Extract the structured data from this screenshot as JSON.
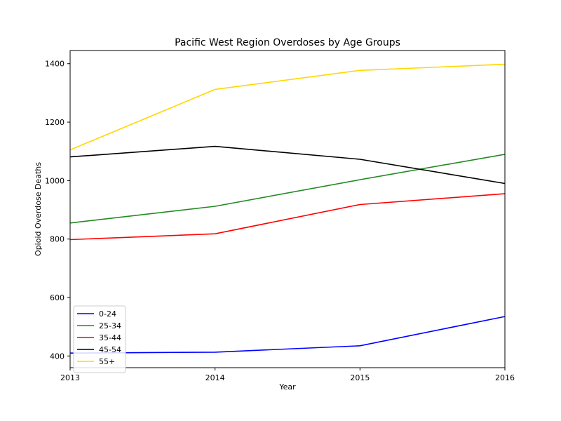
{
  "chart_data": {
    "type": "line",
    "title": "Pacific West Region Overdoses by Age Groups",
    "xlabel": "Year",
    "ylabel": "Opioid Overdose Deaths",
    "x": [
      2013,
      2014,
      2015,
      2016
    ],
    "x_tick_labels": [
      "2013",
      "2014",
      "2015",
      "2016"
    ],
    "xlim": [
      2013,
      2016
    ],
    "ylim": [
      360,
      1445
    ],
    "y_ticks": [
      400,
      600,
      800,
      1000,
      1200,
      1400
    ],
    "y_tick_labels": [
      "400",
      "600",
      "800",
      "1000",
      "1200",
      "1400"
    ],
    "grid": false,
    "legend_position": "lower-left",
    "series": [
      {
        "name": "0-24",
        "color": "#0000ff",
        "values": [
          410,
          413,
          435,
          535
        ]
      },
      {
        "name": "25-34",
        "color": "#228b22",
        "values": [
          855,
          912,
          1003,
          1090
        ]
      },
      {
        "name": "35-44",
        "color": "#ff0000",
        "values": [
          798,
          818,
          918,
          955
        ]
      },
      {
        "name": "45-54",
        "color": "#000000",
        "values": [
          1081,
          1117,
          1073,
          990
        ]
      },
      {
        "name": "55+",
        "color": "#ffd700",
        "values": [
          1105,
          1312,
          1377,
          1398
        ]
      }
    ]
  }
}
